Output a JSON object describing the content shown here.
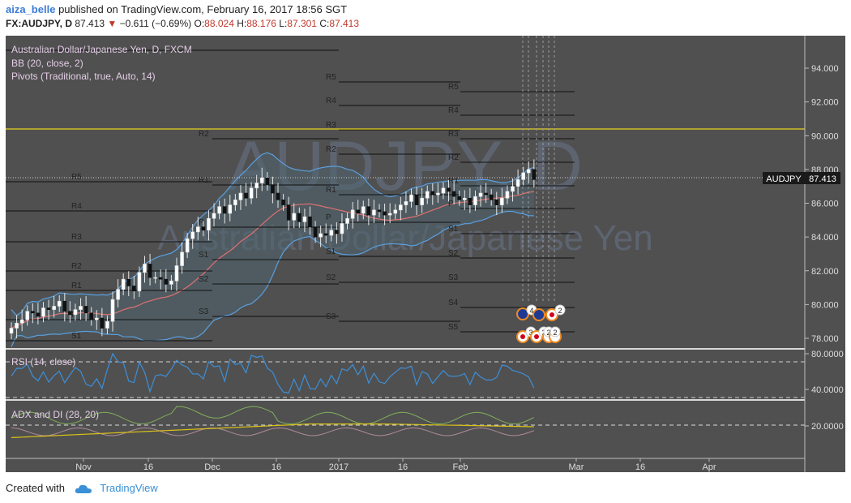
{
  "header": {
    "author": "aiza_belle",
    "published_text": "published on TradingView.com, February 16, 2017 18:56 SGT",
    "symbol": "FX:AUDJPY, D",
    "last": "87.413",
    "change": "−0.611 (−0.69%)",
    "o_label": "O:",
    "o": "88.024",
    "h_label": "H:",
    "h": "88.176",
    "l_label": "L:",
    "l": "87.301",
    "c_label": "C:",
    "c": "87.413"
  },
  "legend": {
    "title": "Australian Dollar/Japanese Yen, D, FXCM",
    "bb": "BB (20, close, 2)",
    "pivots": "Pivots (Traditional, true, Auto, 14)",
    "rsi": "RSI (14, close)",
    "adx": "ADX and DI (28, 20)"
  },
  "watermark": {
    "big": "AUDJPY, D",
    "sub": "Australian Dollar/Japanese Yen"
  },
  "price_axis": [
    "94.000",
    "92.000",
    "90.000",
    "88.000",
    "86.000",
    "84.000",
    "82.000",
    "80.000",
    "78.000"
  ],
  "rsi_axis": [
    "80.0000",
    "40.0000"
  ],
  "adx_axis": [
    "20.0000"
  ],
  "price_tag": {
    "symbol": "AUDJPY",
    "value": "87.413"
  },
  "time_axis": [
    "Nov",
    "16",
    "Dec",
    "16",
    "2017",
    "16",
    "Feb",
    "Mar",
    "16",
    "Apr"
  ],
  "pivot_labels": [
    "R5",
    "R4",
    "R3",
    "R2",
    "R1",
    "P",
    "S1",
    "S2",
    "S3",
    "S4",
    "S5"
  ],
  "event_counts": [
    "4",
    "2",
    "3",
    "2",
    "2",
    "2"
  ],
  "chart_data": {
    "type": "candlestick",
    "title": "Australian Dollar/Japanese Yen, D, FXCM",
    "ylim": [
      77,
      96
    ],
    "closes": [
      78.6,
      78.9,
      79.1,
      79.6,
      79.5,
      79.3,
      79.8,
      79.7,
      79.9,
      80.2,
      79.6,
      79.4,
      79.7,
      79.9,
      79.5,
      79.1,
      79.2,
      78.6,
      79.0,
      80.3,
      80.9,
      81.5,
      81.1,
      80.8,
      81.9,
      82.4,
      81.6,
      81.6,
      81.5,
      81.2,
      81.4,
      82.3,
      83.1,
      83.9,
      84.3,
      84.6,
      84.4,
      85.1,
      85.4,
      85.8,
      85.4,
      85.9,
      86.2,
      86.6,
      86.3,
      86.9,
      87.2,
      87.5,
      87.1,
      86.6,
      86.2,
      85.9,
      85.0,
      85.4,
      84.9,
      85.2,
      84.6,
      84.0,
      84.2,
      84.1,
      84.4,
      84.2,
      84.8,
      85.1,
      85.6,
      85.4,
      85.8,
      85.3,
      85.6,
      85.5,
      85.3,
      85.4,
      85.6,
      85.9,
      86.1,
      86.5,
      85.9,
      86.3,
      86.7,
      86.5,
      86.6,
      86.9,
      86.7,
      86.4,
      86.2,
      86.3,
      85.9,
      86.4,
      86.6,
      86.5,
      86.2,
      85.9,
      86.3,
      86.7,
      87.0,
      87.4,
      87.8,
      88.0,
      87.4
    ],
    "current": 87.413,
    "yellow_line": 90.3,
    "rsi_levels": [
      70,
      30
    ],
    "adx_level": 20
  }
}
